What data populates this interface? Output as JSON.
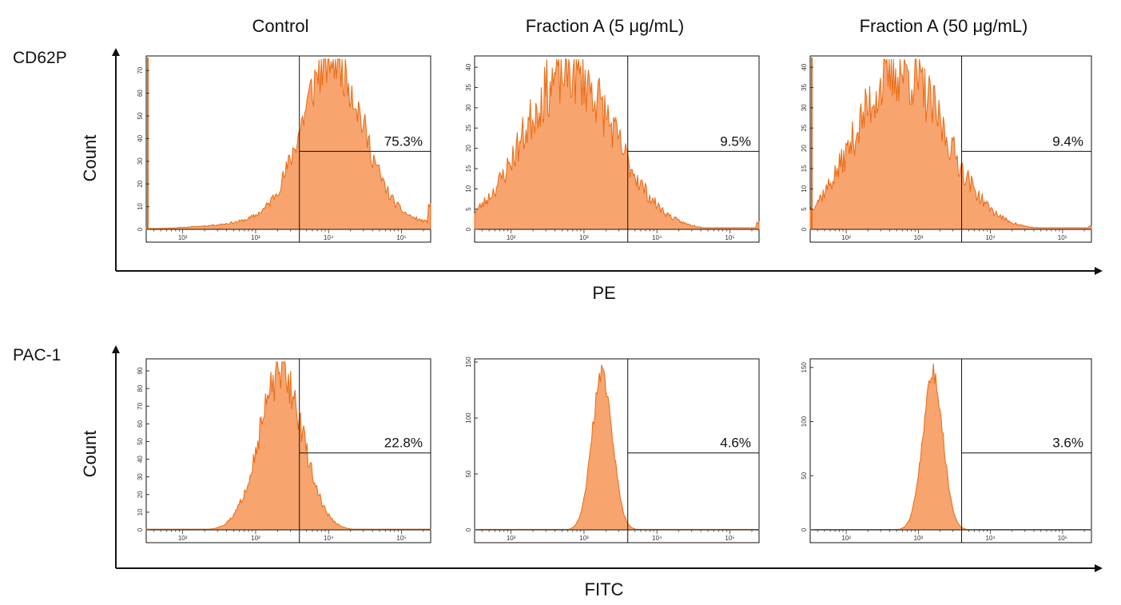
{
  "chart_data": {
    "type": "histogram-grid",
    "title": "",
    "columns": [
      "Control",
      "Fraction A (5 μg/mL)",
      "Fraction A (50 μg/mL)"
    ],
    "fill_color": "#f7a46f",
    "line_color": "#e96b14",
    "rows": [
      {
        "name": "CD62P",
        "ylabel": "Count",
        "xlabel": "PE",
        "panels": [
          {
            "column": "Control",
            "gate_percent": "75.3%",
            "ymax": 75,
            "yticks": [
              0,
              10,
              20,
              30,
              40,
              50,
              60,
              70
            ],
            "gate_x_log": 3.6,
            "hist": {
              "mean_log": 4.05,
              "sd_log": 0.4,
              "tail_amp": 0.1,
              "tail_sd": 1.0,
              "noise": 0.18,
              "spike_left": true,
              "right_end": 0.15,
              "seed": 11
            }
          },
          {
            "column": "Fraction A (5 μg/mL)",
            "gate_percent": "9.5%",
            "ymax": 42,
            "yticks": [
              0,
              5,
              10,
              15,
              20,
              25,
              30,
              35,
              40
            ],
            "gate_x_log": 3.6,
            "hist": {
              "mean_log": 2.8,
              "sd_log": 0.62,
              "tail_amp": 0,
              "tail_sd": 1,
              "noise": 0.22,
              "spike_left": false,
              "right_end": 0.04,
              "seed": 23
            }
          },
          {
            "column": "Fraction A (50 μg/mL)",
            "gate_percent": "9.4%",
            "ymax": 42,
            "yticks": [
              0,
              5,
              10,
              15,
              20,
              25,
              30,
              35,
              40
            ],
            "gate_x_log": 3.6,
            "hist": {
              "mean_log": 2.75,
              "sd_log": 0.62,
              "tail_amp": 0,
              "tail_sd": 1,
              "noise": 0.22,
              "spike_left": true,
              "right_end": 0.02,
              "seed": 37
            }
          }
        ]
      },
      {
        "name": "PAC-1",
        "ylabel": "Count",
        "xlabel": "FITC",
        "panels": [
          {
            "column": "Control",
            "gate_percent": "22.8%",
            "ymax": 95,
            "yticks": [
              0,
              10,
              20,
              30,
              40,
              50,
              60,
              70,
              80,
              90
            ],
            "gate_x_log": 3.6,
            "hist": {
              "mean_log": 3.35,
              "sd_log": 0.3,
              "tail_amp": 0,
              "tail_sd": 1,
              "noise": 0.14,
              "spike_left": false,
              "right_end": 0,
              "seed": 51
            }
          },
          {
            "column": "Fraction A (5 μg/mL)",
            "gate_percent": "4.6%",
            "ymax": 150,
            "yticks": [
              0,
              50,
              100,
              150
            ],
            "gate_x_log": 3.6,
            "hist": {
              "mean_log": 3.25,
              "sd_log": 0.14,
              "tail_amp": 0,
              "tail_sd": 1,
              "noise": 0.07,
              "spike_left": false,
              "right_end": 0,
              "seed": 67
            }
          },
          {
            "column": "Fraction A (50 μg/mL)",
            "gate_percent": "3.6%",
            "ymax": 155,
            "yticks": [
              0,
              50,
              100,
              150
            ],
            "gate_x_log": 3.6,
            "hist": {
              "mean_log": 3.2,
              "sd_log": 0.14,
              "tail_amp": 0,
              "tail_sd": 1,
              "noise": 0.07,
              "spike_left": false,
              "right_end": 0,
              "seed": 79
            }
          }
        ]
      }
    ],
    "x_axis": {
      "scale": "log",
      "range_log": [
        1.5,
        5.4
      ],
      "ticks": [
        {
          "exp": 2,
          "label": "10²"
        },
        {
          "exp": 3,
          "label": "10³"
        },
        {
          "exp": 4,
          "label": "10⁴"
        },
        {
          "exp": 5,
          "label": "10⁵"
        }
      ]
    }
  }
}
